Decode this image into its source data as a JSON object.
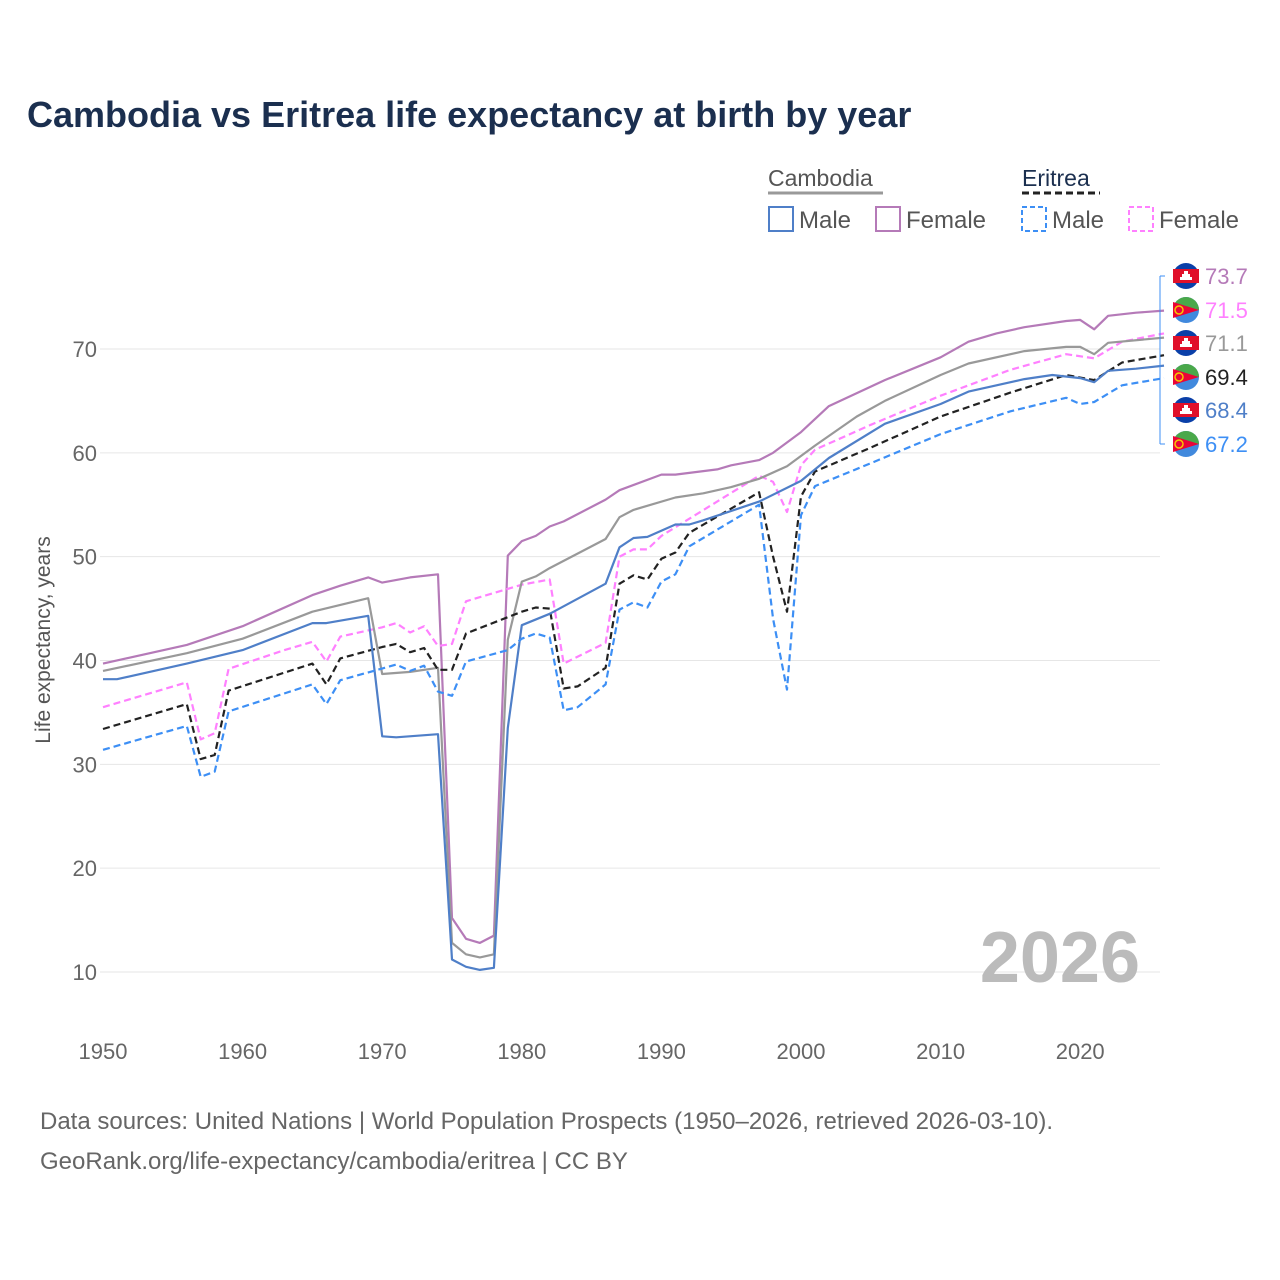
{
  "chart_data": {
    "type": "line",
    "title": "Cambodia vs Eritrea life expectancy at birth by year",
    "xlabel": "",
    "ylabel": "Life expectancy, years",
    "xlim": [
      1950,
      2026
    ],
    "ylim": [
      5,
      75
    ],
    "xticks": [
      1950,
      1960,
      1970,
      1980,
      1990,
      2000,
      2010,
      2020
    ],
    "yticks": [
      10,
      20,
      30,
      40,
      50,
      60,
      70
    ],
    "grid": true,
    "year_watermark": "2026",
    "legend": {
      "placement": "top-right",
      "groups": [
        {
          "name": "Cambodia",
          "items": [
            "Male",
            "Female"
          ]
        },
        {
          "name": "Eritrea",
          "items": [
            "Male",
            "Female"
          ]
        }
      ]
    },
    "series": [
      {
        "name": "Cambodia Female",
        "color": "#b57ab8",
        "dash": false,
        "flag": "cambodia",
        "end_label": "73.7",
        "points": [
          [
            1950,
            39.7
          ],
          [
            1956,
            41.5
          ],
          [
            1960,
            43.3
          ],
          [
            1965,
            46.3
          ],
          [
            1967,
            47.2
          ],
          [
            1969,
            48
          ],
          [
            1970,
            47.5
          ],
          [
            1972,
            48
          ],
          [
            1974,
            48.3
          ],
          [
            1975,
            15.2
          ],
          [
            1976,
            13.2
          ],
          [
            1977,
            12.8
          ],
          [
            1978,
            13.5
          ],
          [
            1979,
            50.1
          ],
          [
            1980,
            51.5
          ],
          [
            1981,
            52
          ],
          [
            1982,
            52.9
          ],
          [
            1983,
            53.4
          ],
          [
            1986,
            55.5
          ],
          [
            1987,
            56.4
          ],
          [
            1990,
            57.9
          ],
          [
            1991,
            57.9
          ],
          [
            1994,
            58.4
          ],
          [
            1995,
            58.8
          ],
          [
            1997,
            59.3
          ],
          [
            1998,
            60
          ],
          [
            2000,
            62
          ],
          [
            2002,
            64.5
          ],
          [
            2006,
            67
          ],
          [
            2010,
            69.2
          ],
          [
            2012,
            70.7
          ],
          [
            2014,
            71.5
          ],
          [
            2016,
            72.1
          ],
          [
            2019,
            72.7
          ],
          [
            2020,
            72.8
          ],
          [
            2021,
            71.9
          ],
          [
            2022,
            73.2
          ],
          [
            2024,
            73.5
          ],
          [
            2026,
            73.7
          ]
        ]
      },
      {
        "name": "Eritrea Female",
        "color": "#ff80ff",
        "dash": true,
        "flag": "eritrea",
        "end_label": "71.5",
        "points": [
          [
            1950,
            35.5
          ],
          [
            1956,
            37.9
          ],
          [
            1957,
            32.4
          ],
          [
            1958,
            33
          ],
          [
            1959,
            39.2
          ],
          [
            1963,
            41
          ],
          [
            1965,
            41.8
          ],
          [
            1966,
            39.9
          ],
          [
            1967,
            42.3
          ],
          [
            1970,
            43.2
          ],
          [
            1971,
            43.6
          ],
          [
            1972,
            42.7
          ],
          [
            1973,
            43.3
          ],
          [
            1974,
            41.4
          ],
          [
            1975,
            41.6
          ],
          [
            1976,
            45.7
          ],
          [
            1978,
            46.5
          ],
          [
            1980,
            47.3
          ],
          [
            1982,
            47.8
          ],
          [
            1983,
            39.7
          ],
          [
            1986,
            41.7
          ],
          [
            1987,
            50
          ],
          [
            1988,
            50.7
          ],
          [
            1989,
            50.7
          ],
          [
            1990,
            52
          ],
          [
            1997,
            57.8
          ],
          [
            1998,
            57.2
          ],
          [
            1999,
            54.3
          ],
          [
            2000,
            58.8
          ],
          [
            2001,
            60.3
          ],
          [
            2005,
            62.7
          ],
          [
            2010,
            65.5
          ],
          [
            2015,
            68
          ],
          [
            2019,
            69.5
          ],
          [
            2021,
            69.1
          ],
          [
            2023,
            70.7
          ],
          [
            2026,
            71.5
          ]
        ]
      },
      {
        "name": "Cambodia",
        "color": "#999999",
        "dash": false,
        "flag": "cambodia",
        "end_label": "71.1",
        "points": [
          [
            1950,
            39
          ],
          [
            1956,
            40.7
          ],
          [
            1960,
            42.1
          ],
          [
            1965,
            44.7
          ],
          [
            1969,
            46
          ],
          [
            1970,
            38.7
          ],
          [
            1972,
            38.9
          ],
          [
            1974,
            39.3
          ],
          [
            1975,
            12.8
          ],
          [
            1976,
            11.7
          ],
          [
            1977,
            11.4
          ],
          [
            1978,
            11.7
          ],
          [
            1979,
            42
          ],
          [
            1980,
            47.6
          ],
          [
            1981,
            48.1
          ],
          [
            1982,
            48.9
          ],
          [
            1986,
            51.7
          ],
          [
            1987,
            53.8
          ],
          [
            1988,
            54.5
          ],
          [
            1991,
            55.7
          ],
          [
            1993,
            56.1
          ],
          [
            1995,
            56.7
          ],
          [
            1997,
            57.5
          ],
          [
            1999,
            58.7
          ],
          [
            2001,
            60.7
          ],
          [
            2004,
            63.5
          ],
          [
            2006,
            65
          ],
          [
            2010,
            67.5
          ],
          [
            2012,
            68.6
          ],
          [
            2016,
            69.8
          ],
          [
            2019,
            70.2
          ],
          [
            2020,
            70.2
          ],
          [
            2021,
            69.5
          ],
          [
            2022,
            70.6
          ],
          [
            2026,
            71.1
          ]
        ]
      },
      {
        "name": "Eritrea",
        "color": "#222222",
        "dash": true,
        "flag": "eritrea",
        "end_label": "69.4",
        "points": [
          [
            1950,
            33.4
          ],
          [
            1956,
            35.8
          ],
          [
            1957,
            30.5
          ],
          [
            1958,
            30.9
          ],
          [
            1959,
            37.1
          ],
          [
            1965,
            39.7
          ],
          [
            1966,
            37.7
          ],
          [
            1967,
            40.2
          ],
          [
            1970,
            41.3
          ],
          [
            1971,
            41.6
          ],
          [
            1972,
            40.8
          ],
          [
            1973,
            41.2
          ],
          [
            1974,
            39.1
          ],
          [
            1975,
            39.1
          ],
          [
            1976,
            42.6
          ],
          [
            1980,
            44.7
          ],
          [
            1981,
            45.1
          ],
          [
            1982,
            45
          ],
          [
            1983,
            37.3
          ],
          [
            1984,
            37.5
          ],
          [
            1986,
            39.3
          ],
          [
            1987,
            47.4
          ],
          [
            1988,
            48.2
          ],
          [
            1989,
            47.8
          ],
          [
            1990,
            49.8
          ],
          [
            1991,
            50.4
          ],
          [
            1992,
            52.3
          ],
          [
            1997,
            56.2
          ],
          [
            1998,
            50
          ],
          [
            1999,
            44.7
          ],
          [
            2000,
            55.8
          ],
          [
            2001,
            58.2
          ],
          [
            2005,
            60.5
          ],
          [
            2010,
            63.5
          ],
          [
            2015,
            65.8
          ],
          [
            2019,
            67.5
          ],
          [
            2021,
            67
          ],
          [
            2023,
            68.7
          ],
          [
            2026,
            69.4
          ]
        ]
      },
      {
        "name": "Cambodia Male",
        "color": "#4f7fc8",
        "dash": false,
        "flag": "cambodia",
        "end_label": "68.4",
        "points": [
          [
            1950,
            38.2
          ],
          [
            1951,
            38.2
          ],
          [
            1956,
            39.7
          ],
          [
            1960,
            41
          ],
          [
            1965,
            43.6
          ],
          [
            1966,
            43.6
          ],
          [
            1969,
            44.3
          ],
          [
            1970,
            32.7
          ],
          [
            1971,
            32.6
          ],
          [
            1974,
            32.9
          ],
          [
            1975,
            11.2
          ],
          [
            1976,
            10.5
          ],
          [
            1977,
            10.2
          ],
          [
            1978,
            10.4
          ],
          [
            1979,
            33.5
          ],
          [
            1980,
            43.4
          ],
          [
            1982,
            44.5
          ],
          [
            1986,
            47.4
          ],
          [
            1987,
            50.9
          ],
          [
            1988,
            51.8
          ],
          [
            1989,
            51.9
          ],
          [
            1991,
            53.1
          ],
          [
            1992,
            53.1
          ],
          [
            1993,
            53.5
          ],
          [
            1997,
            55.3
          ],
          [
            2000,
            57.3
          ],
          [
            2002,
            59.5
          ],
          [
            2006,
            62.8
          ],
          [
            2010,
            64.7
          ],
          [
            2012,
            65.9
          ],
          [
            2016,
            67.1
          ],
          [
            2018,
            67.5
          ],
          [
            2020,
            67.2
          ],
          [
            2021,
            66.8
          ],
          [
            2022,
            67.9
          ],
          [
            2024,
            68.1
          ],
          [
            2026,
            68.4
          ]
        ]
      },
      {
        "name": "Eritrea Male",
        "color": "#3d8ff5",
        "dash": true,
        "flag": "eritrea",
        "end_label": "67.2",
        "points": [
          [
            1950,
            31.4
          ],
          [
            1956,
            33.7
          ],
          [
            1957,
            28.8
          ],
          [
            1958,
            29.3
          ],
          [
            1959,
            35.1
          ],
          [
            1965,
            37.7
          ],
          [
            1966,
            35.8
          ],
          [
            1967,
            38.1
          ],
          [
            1971,
            39.6
          ],
          [
            1972,
            39
          ],
          [
            1973,
            39.5
          ],
          [
            1974,
            37
          ],
          [
            1975,
            36.6
          ],
          [
            1976,
            39.9
          ],
          [
            1979,
            41
          ],
          [
            1980,
            42.1
          ],
          [
            1981,
            42.6
          ],
          [
            1982,
            42.2
          ],
          [
            1983,
            35.2
          ],
          [
            1984,
            35.5
          ],
          [
            1986,
            37.7
          ],
          [
            1987,
            44.9
          ],
          [
            1988,
            45.6
          ],
          [
            1989,
            45.1
          ],
          [
            1990,
            47.6
          ],
          [
            1991,
            48.3
          ],
          [
            1992,
            51
          ],
          [
            1997,
            55
          ],
          [
            1998,
            44
          ],
          [
            1999,
            37.2
          ],
          [
            2000,
            54
          ],
          [
            2001,
            56.8
          ],
          [
            2005,
            59
          ],
          [
            2010,
            61.8
          ],
          [
            2015,
            64
          ],
          [
            2019,
            65.3
          ],
          [
            2020,
            64.7
          ],
          [
            2021,
            64.9
          ],
          [
            2023,
            66.5
          ],
          [
            2026,
            67.2
          ]
        ]
      }
    ]
  },
  "footer": {
    "line1": "Data sources: United Nations | World Population Prospects (1950–2026, retrieved 2026-03-10).",
    "line2": "GeoRank.org/life-expectancy/cambodia/eritrea | CC BY"
  }
}
